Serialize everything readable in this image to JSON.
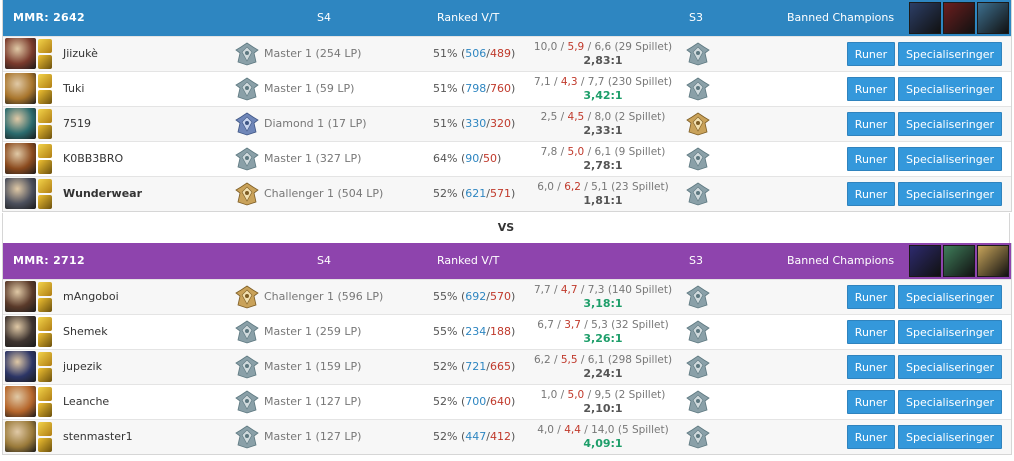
{
  "colors": {
    "blue_team": "#2e86c1",
    "red_team": "#8e44ad",
    "win": "#2e86c1",
    "loss": "#c0392b",
    "good_kdr": "#1e9e6a",
    "button": "#3498db"
  },
  "labels": {
    "s4": "S4",
    "ranked": "Ranked V/T",
    "s3": "S3",
    "banned": "Banned Champions",
    "runes_button": "Runer",
    "spec_button": "Specialiseringer",
    "vs": "VS"
  },
  "teams": [
    {
      "mmr": "MMR: 2642",
      "bans": [
        {
          "icon": "yasuo-portrait-icon",
          "color": "#2c3e66"
        },
        {
          "icon": "zed-portrait-icon",
          "color": "#6b1e1e"
        },
        {
          "icon": "blitzcrank-portrait-icon",
          "color": "#3d6f8e"
        }
      ],
      "players": [
        {
          "name": "Jiizukè",
          "tier": "Master 1 (254 LP)",
          "tier_icon": "master-tier-icon",
          "pct": "51%",
          "wins": "506",
          "losses": "489",
          "k": "10,0",
          "d": "5,9",
          "a": "6,6",
          "games": "(29 Spillet)",
          "kdr": "2,83:1",
          "kdr_good": false,
          "s3_icon": "master-tier-icon",
          "champ_color": "#7a3a2c",
          "bold": false
        },
        {
          "name": "Tuki",
          "tier": "Master 1 (59 LP)",
          "tier_icon": "master-tier-icon",
          "pct": "51%",
          "wins": "798",
          "losses": "760",
          "k": "7,1",
          "d": "4,3",
          "a": "7,7",
          "games": "(230 Spillet)",
          "kdr": "3,42:1",
          "kdr_good": true,
          "s3_icon": "master-tier-icon",
          "champ_color": "#a8752c",
          "bold": false
        },
        {
          "name": "7519",
          "tier": "Diamond 1 (17 LP)",
          "tier_icon": "diamond-tier-icon",
          "pct": "51%",
          "wins": "330",
          "losses": "320",
          "k": "2,5",
          "d": "4,5",
          "a": "8,0",
          "games": "(2 Spillet)",
          "kdr": "2,33:1",
          "kdr_good": false,
          "s3_icon": "challenger-tier-icon",
          "champ_color": "#2b6b6e",
          "bold": false
        },
        {
          "name": "K0BB3BRO",
          "tier": "Master 1 (327 LP)",
          "tier_icon": "master-tier-icon",
          "pct": "64%",
          "wins": "90",
          "losses": "50",
          "k": "7,8",
          "d": "5,0",
          "a": "6,1",
          "games": "(9 Spillet)",
          "kdr": "2,78:1",
          "kdr_good": false,
          "s3_icon": "master-tier-icon",
          "champ_color": "#8a4a1e",
          "bold": false
        },
        {
          "name": "Wunderwear",
          "tier": "Challenger 1 (504 LP)",
          "tier_icon": "challenger-tier-icon",
          "pct": "52%",
          "wins": "621",
          "losses": "571",
          "k": "6,0",
          "d": "6,2",
          "a": "5,1",
          "games": "(23 Spillet)",
          "kdr": "1,81:1",
          "kdr_good": false,
          "s3_icon": "master-tier-icon",
          "champ_color": "#4b4f5c",
          "bold": true
        }
      ]
    },
    {
      "mmr": "MMR: 2712",
      "bans": [
        {
          "icon": "kassadin-portrait-icon",
          "color": "#2d2a6e"
        },
        {
          "icon": "nidalee-portrait-icon",
          "color": "#3f7d5a"
        },
        {
          "icon": "lux-portrait-icon",
          "color": "#c7a45a"
        }
      ],
      "players": [
        {
          "name": "mAngoboi",
          "tier": "Challenger 1 (596 LP)",
          "tier_icon": "challenger-tier-icon",
          "pct": "55%",
          "wins": "692",
          "losses": "570",
          "k": "7,7",
          "d": "4,7",
          "a": "7,3",
          "games": "(140 Spillet)",
          "kdr": "3,18:1",
          "kdr_good": true,
          "s3_icon": "master-tier-icon",
          "champ_color": "#5a3a2a",
          "bold": false
        },
        {
          "name": "Shemek",
          "tier": "Master 1 (259 LP)",
          "tier_icon": "master-tier-icon",
          "pct": "55%",
          "wins": "234",
          "losses": "188",
          "k": "6,7",
          "d": "3,7",
          "a": "5,3",
          "games": "(32 Spillet)",
          "kdr": "3,26:1",
          "kdr_good": true,
          "s3_icon": "master-tier-icon",
          "champ_color": "#3e3430",
          "bold": false
        },
        {
          "name": "jupezik",
          "tier": "Master 1 (159 LP)",
          "tier_icon": "master-tier-icon",
          "pct": "52%",
          "wins": "721",
          "losses": "665",
          "k": "6,2",
          "d": "5,5",
          "a": "6,1",
          "games": "(298 Spillet)",
          "kdr": "2,24:1",
          "kdr_good": false,
          "s3_icon": "master-tier-icon",
          "champ_color": "#2c3566",
          "bold": false
        },
        {
          "name": "Leanche",
          "tier": "Master 1 (127 LP)",
          "tier_icon": "master-tier-icon",
          "pct": "52%",
          "wins": "700",
          "losses": "640",
          "k": "1,0",
          "d": "5,0",
          "a": "9,5",
          "games": "(2 Spillet)",
          "kdr": "2,10:1",
          "kdr_good": false,
          "s3_icon": "master-tier-icon",
          "champ_color": "#b5652a",
          "bold": false
        },
        {
          "name": "stenmaster1",
          "tier": "Master 1 (127 LP)",
          "tier_icon": "master-tier-icon",
          "pct": "52%",
          "wins": "447",
          "losses": "412",
          "k": "4,0",
          "d": "4,4",
          "a": "14,0",
          "games": "(5 Spillet)",
          "kdr": "4,09:1",
          "kdr_good": true,
          "s3_icon": "master-tier-icon",
          "champ_color": "#9a7a3a",
          "bold": false
        }
      ]
    }
  ]
}
